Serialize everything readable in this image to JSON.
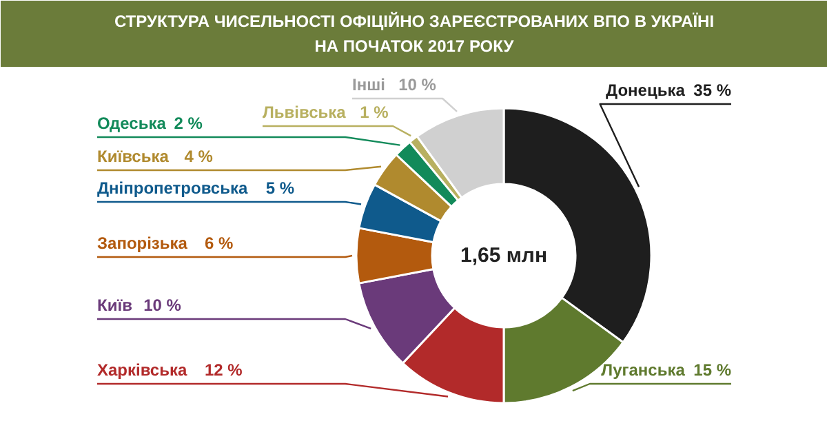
{
  "chart_data": {
    "type": "donut",
    "title": "СТРУКТУРА ЧИСЕЛЬНОСТІ ОФІЦІЙНО ЗАРЕЄСТРОВАНИХ ВПО В УКРАЇНІ\nНА ПОЧАТОК 2017 РОКУ",
    "categories": [
      "Донецька",
      "Луганська",
      "Харківська",
      "Київ",
      "Запорізька",
      "Дніпропетровська",
      "Київська",
      "Одеська",
      "Львівська",
      "Інші"
    ],
    "values": [
      35,
      15,
      12,
      10,
      6,
      5,
      4,
      2,
      1,
      10
    ],
    "colors": [
      "#1e1e1e",
      "#5f7a2e",
      "#b22a2a",
      "#6a3a7a",
      "#b35a0e",
      "#0f5a8c",
      "#b08a2e",
      "#128a5a",
      "#b8b060",
      "#d0d0d0"
    ],
    "value_labels": [
      "35 %",
      "15 %",
      "12 %",
      "10 %",
      "6 %",
      "5 %",
      "4 %",
      "2 %",
      "1 %",
      "10 %"
    ],
    "annotations": [
      "1,65 млн"
    ]
  }
}
